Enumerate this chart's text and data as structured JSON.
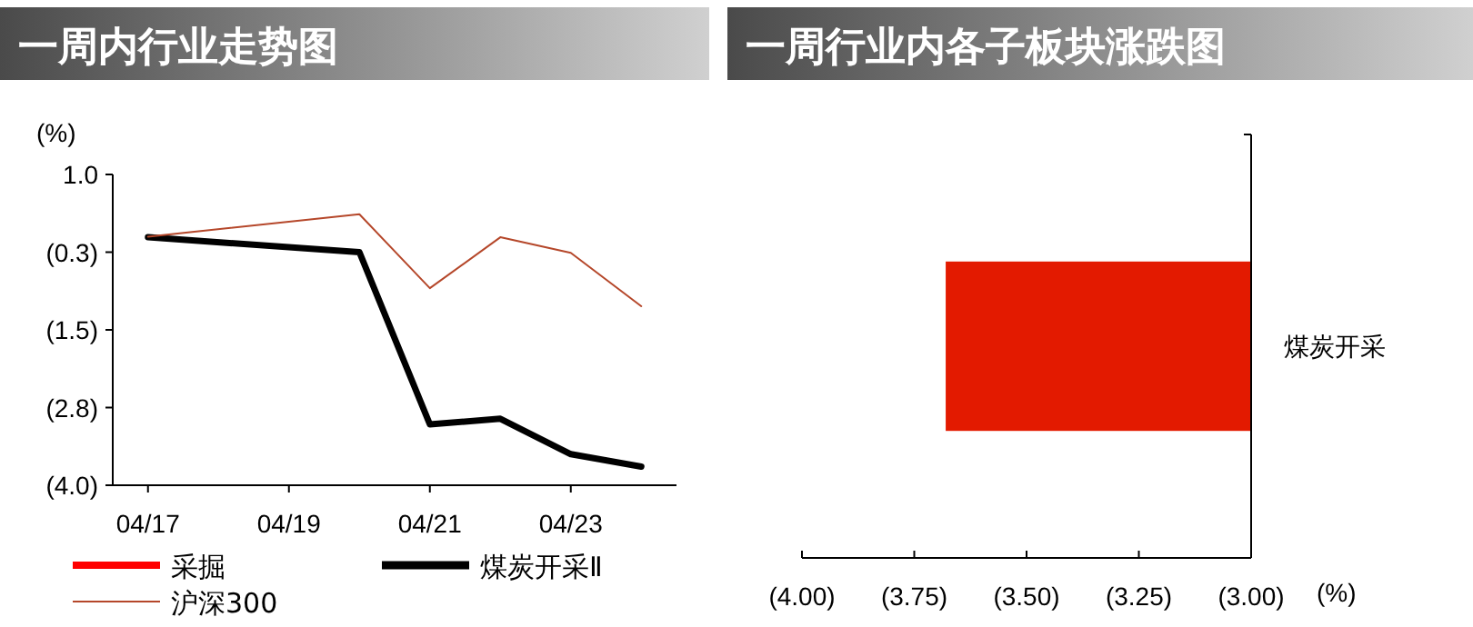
{
  "chart_data": [
    {
      "type": "line",
      "title": "一周内行业走势图",
      "ylabel": "(%)",
      "x": [
        "--04-17",
        "--04-20",
        "--04-21",
        "--04-22",
        "--04-23",
        "--04-24"
      ],
      "xlim": [
        "--04-16T12:00",
        "--04-24T12:00"
      ],
      "xticks": [
        {
          "value": "--04-17",
          "label": "04/17"
        },
        {
          "value": "--04-19",
          "label": "04/19"
        },
        {
          "value": "--04-21",
          "label": "04/21"
        },
        {
          "value": "--04-23",
          "label": "04/23"
        }
      ],
      "ylim": [
        -4,
        1
      ],
      "yticks": [
        {
          "value": 1,
          "label": "1.0"
        },
        {
          "value": -0.25,
          "label": "(0.3)"
        },
        {
          "value": -1.5,
          "label": "(1.5)"
        },
        {
          "value": -2.75,
          "label": "(2.8)"
        },
        {
          "value": -4,
          "label": "(4.0)"
        }
      ],
      "legend": "bottom",
      "series": [
        {
          "name": "采掘",
          "color": "#ff0000",
          "values": [
            null,
            null,
            null,
            null,
            null,
            null
          ]
        },
        {
          "name": "煤炭开采Ⅱ",
          "color": "#000000",
          "values": [
            -0.01,
            -0.25,
            -3.02,
            -2.93,
            -3.5,
            -3.7
          ]
        },
        {
          "name": "沪深300",
          "color": "#b5472a",
          "values": [
            0.0,
            0.36,
            -0.83,
            -0.01,
            -0.26,
            -1.12
          ]
        }
      ]
    },
    {
      "type": "bar",
      "orientation": "horizontal",
      "title": "一周行业内各子板块涨跌图",
      "xlabel": "(%)",
      "categories": [
        "煤炭开采"
      ],
      "values": [
        -3.68
      ],
      "color": "#e31a00",
      "xlim": [
        -4,
        -3
      ],
      "xticks": [
        {
          "value": -4,
          "label": "(4.00)"
        },
        {
          "value": -3.75,
          "label": "(3.75)"
        },
        {
          "value": -3.5,
          "label": "(3.50)"
        },
        {
          "value": -3.25,
          "label": "(3.25)"
        },
        {
          "value": -3,
          "label": "(3.00)"
        }
      ]
    }
  ]
}
